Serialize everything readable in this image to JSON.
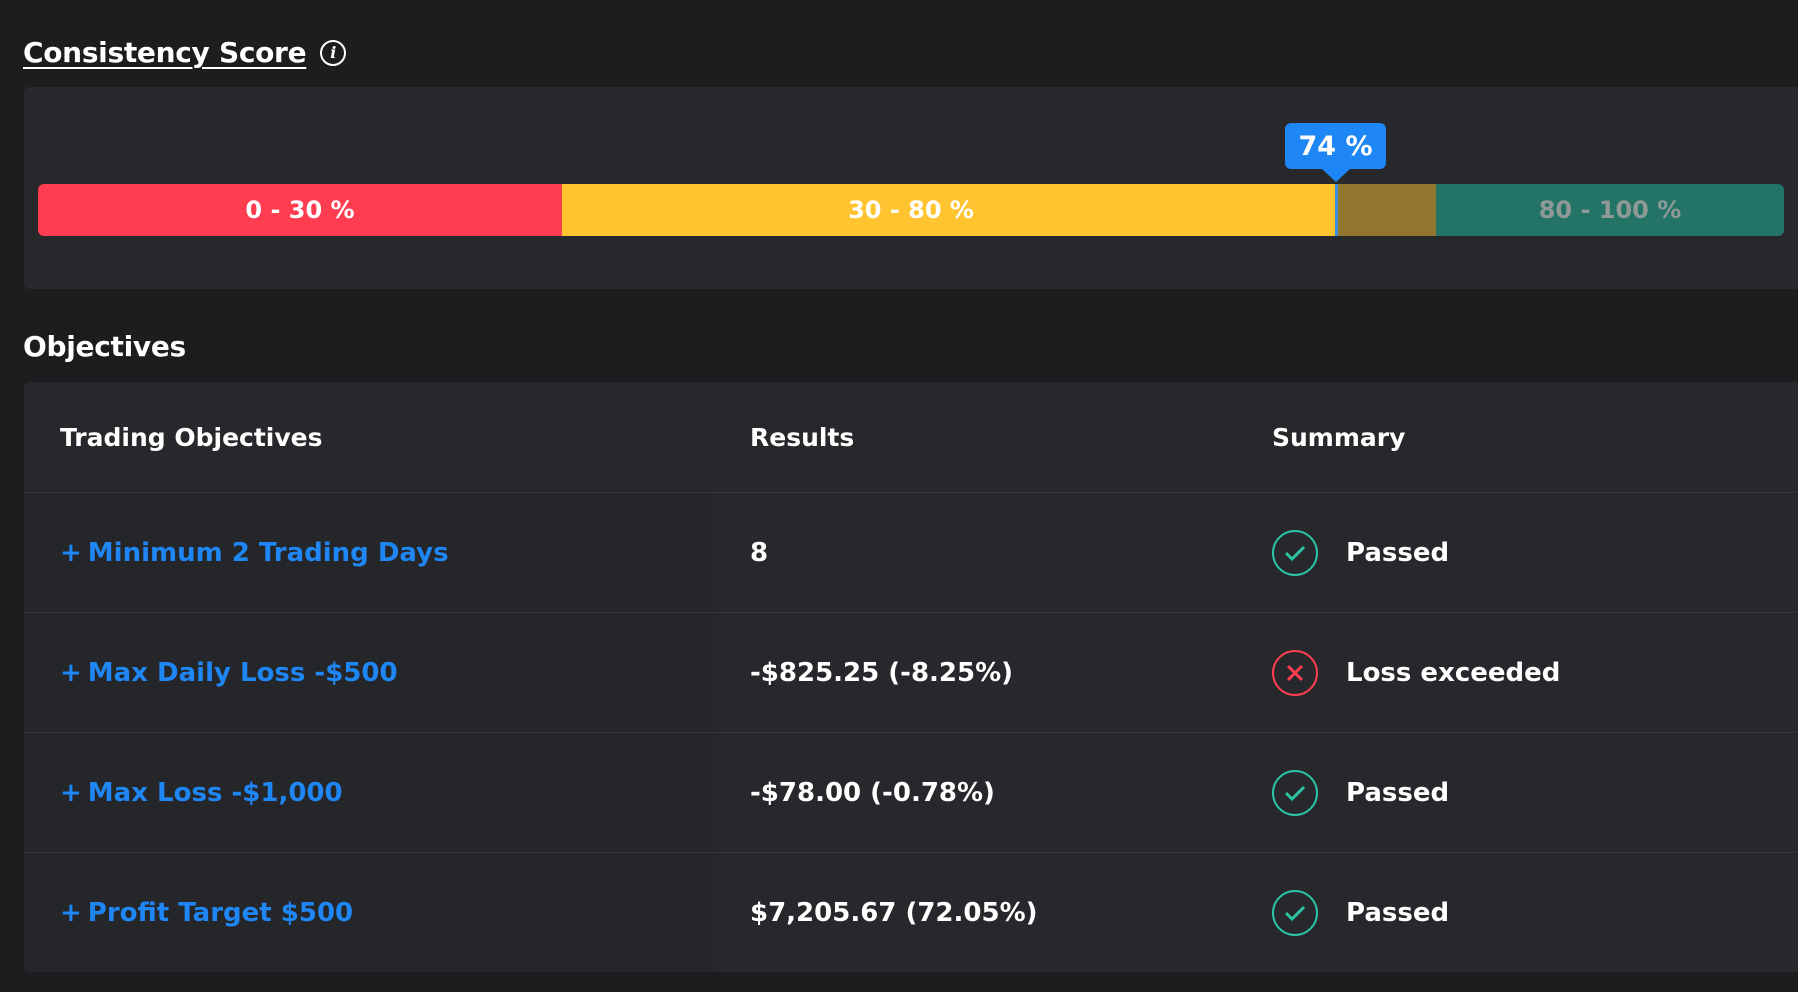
{
  "consistency": {
    "title": "Consistency Score",
    "info_icon": "info-icon",
    "score_label": "74 %",
    "score_value": 74,
    "segments": [
      {
        "label": "0 - 30 %",
        "color": "#ff3d50"
      },
      {
        "label": "30 - 80 %",
        "color": "#ffc42f"
      },
      {
        "label": "80 - 100 %",
        "color": "#237367"
      }
    ],
    "marker_color": "#1e86f5"
  },
  "objectives": {
    "title": "Objectives",
    "headers": {
      "objective": "Trading Objectives",
      "results": "Results",
      "summary": "Summary"
    },
    "rows": [
      {
        "objective": "Minimum 2 Trading Days",
        "result": "8",
        "summary": "Passed",
        "status": "passed"
      },
      {
        "objective": "Max Daily Loss -$500",
        "result": "-$825.25 (-8.25%)",
        "summary": "Loss exceeded",
        "status": "failed"
      },
      {
        "objective": "Max Loss -$1,000",
        "result": "-$78.00 (-0.78%)",
        "summary": "Passed",
        "status": "passed"
      },
      {
        "objective": "Profit Target $500",
        "result": "$7,205.67 (72.05%)",
        "summary": "Passed",
        "status": "passed"
      }
    ],
    "expand_symbol": "+",
    "colors": {
      "link": "#1e86f5",
      "passed": "#2bc4a4",
      "failed": "#ff3d50"
    }
  }
}
